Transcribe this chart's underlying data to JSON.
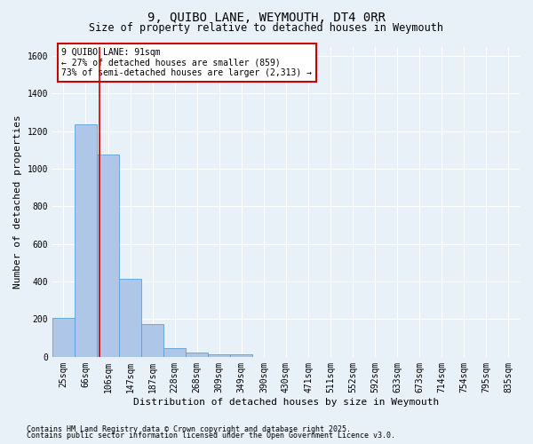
{
  "title": "9, QUIBO LANE, WEYMOUTH, DT4 0RR",
  "subtitle": "Size of property relative to detached houses in Weymouth",
  "xlabel": "Distribution of detached houses by size in Weymouth",
  "ylabel": "Number of detached properties",
  "footnote1": "Contains HM Land Registry data © Crown copyright and database right 2025.",
  "footnote2": "Contains public sector information licensed under the Open Government Licence v3.0.",
  "categories": [
    "25sqm",
    "66sqm",
    "106sqm",
    "147sqm",
    "187sqm",
    "228sqm",
    "268sqm",
    "309sqm",
    "349sqm",
    "390sqm",
    "430sqm",
    "471sqm",
    "511sqm",
    "552sqm",
    "592sqm",
    "633sqm",
    "673sqm",
    "714sqm",
    "754sqm",
    "795sqm",
    "835sqm"
  ],
  "values": [
    205,
    1235,
    1075,
    415,
    175,
    45,
    25,
    15,
    15,
    0,
    0,
    0,
    0,
    0,
    0,
    0,
    0,
    0,
    0,
    0,
    0
  ],
  "bar_color": "#aec6e8",
  "bar_edge_color": "#5a9fd4",
  "annotation_text": "9 QUIBO LANE: 91sqm\n← 27% of detached houses are smaller (859)\n73% of semi-detached houses are larger (2,313) →",
  "annotation_box_color": "#ffffff",
  "annotation_box_edge": "#cc0000",
  "vline_color": "#cc0000",
  "ylim": [
    0,
    1650
  ],
  "yticks": [
    0,
    200,
    400,
    600,
    800,
    1000,
    1200,
    1400,
    1600
  ],
  "background_color": "#e8f0f8",
  "grid_color": "#ffffff",
  "title_fontsize": 10,
  "subtitle_fontsize": 8.5,
  "ylabel_fontsize": 8,
  "xlabel_fontsize": 8,
  "tick_fontsize": 7,
  "footnote_fontsize": 6
}
